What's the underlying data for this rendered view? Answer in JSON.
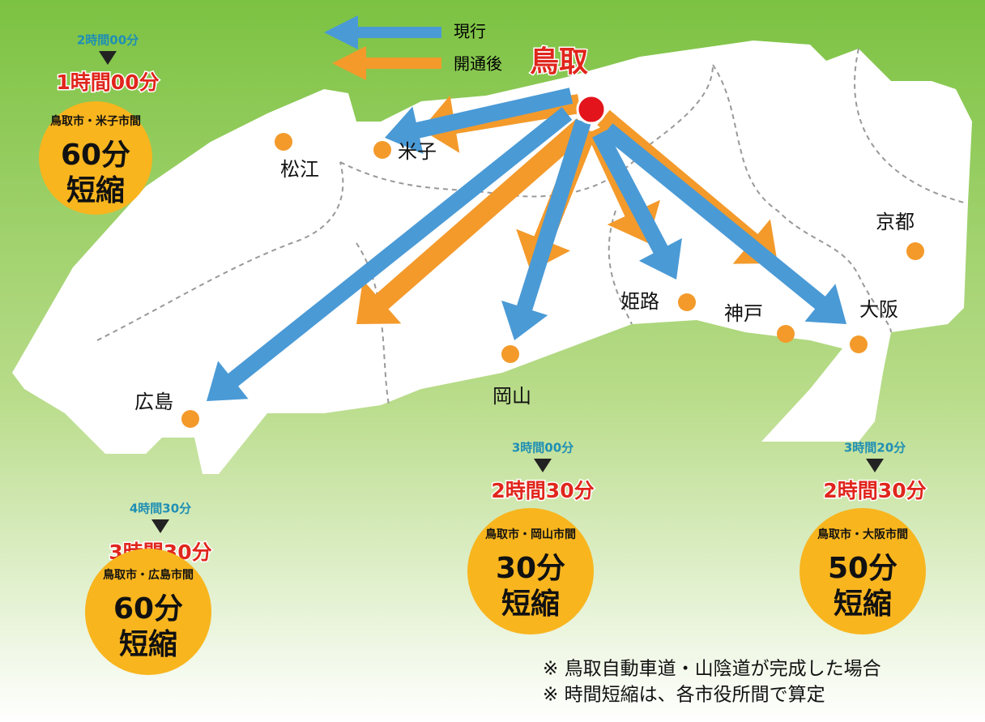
{
  "legend": [
    {
      "label": "現行",
      "color": "#4a9ad6"
    },
    {
      "label": "開通後",
      "color": "#f39a2b"
    }
  ],
  "origin": "鳥取",
  "cities": [
    "松江",
    "米子",
    "広島",
    "岡山",
    "姫路",
    "神戸",
    "大阪",
    "京都"
  ],
  "callouts": [
    {
      "before": "2時間00分",
      "after": "1時間00分",
      "route": "鳥取市・米子市間",
      "saving": "60分",
      "label": "短縮"
    },
    {
      "before": "4時間30分",
      "after": "3時間30分",
      "route": "鳥取市・広島市間",
      "saving": "60分",
      "label": "短縮"
    },
    {
      "before": "3時間00分",
      "after": "2時間30分",
      "route": "鳥取市・岡山市間",
      "saving": "30分",
      "label": "短縮"
    },
    {
      "before": "3時間20分",
      "after": "2時間30分",
      "route": "鳥取市・大阪市間",
      "saving": "50分",
      "label": "短縮"
    }
  ],
  "notes": [
    "※ 鳥取自動車道・山陰道が完成した場合",
    "※ 時間短縮は、各市役所間で算定"
  ]
}
